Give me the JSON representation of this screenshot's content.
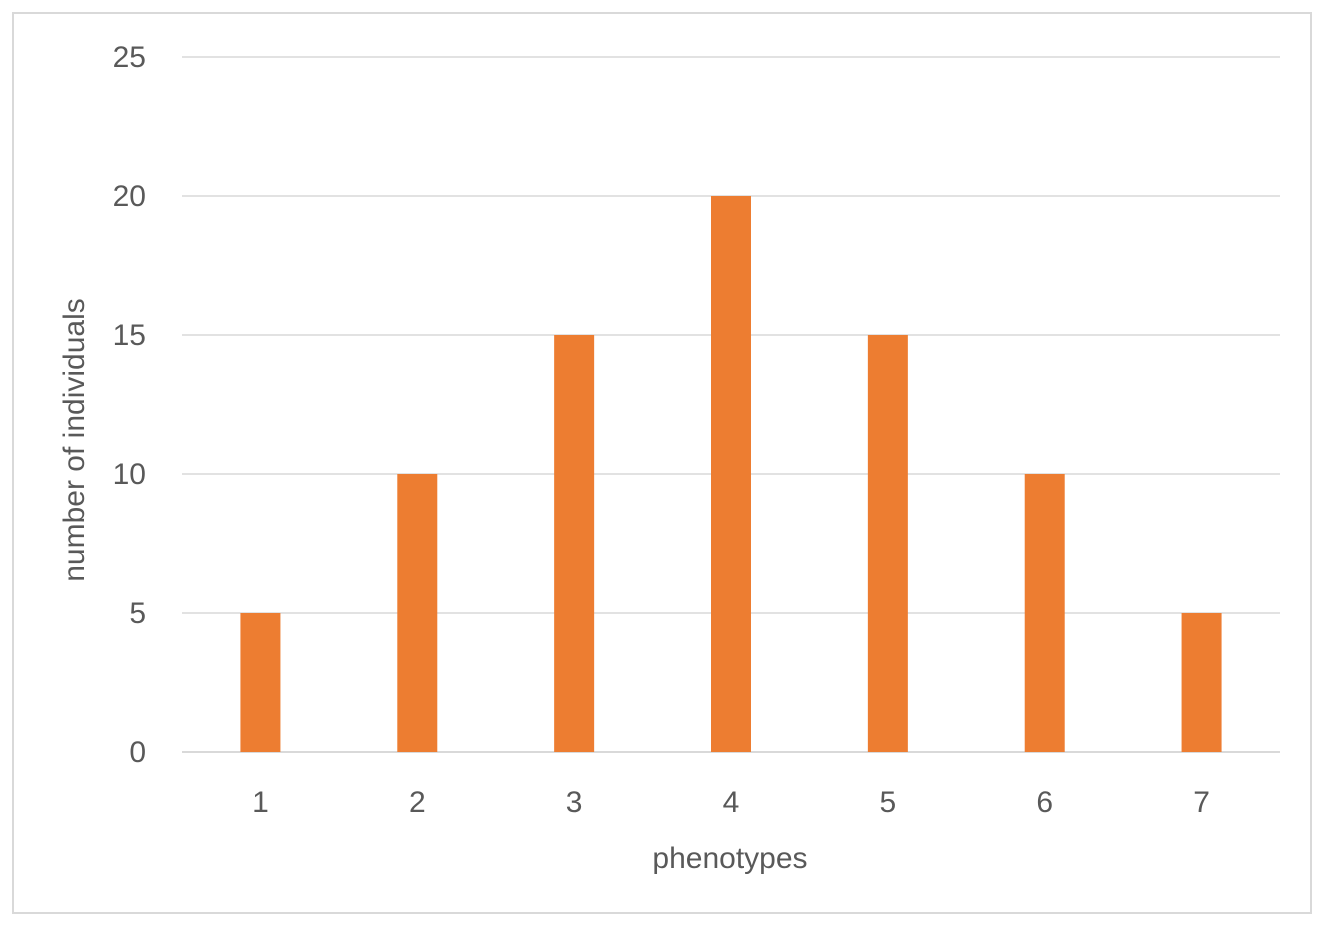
{
  "chart_data": {
    "type": "bar",
    "categories": [
      "1",
      "2",
      "3",
      "4",
      "5",
      "6",
      "7"
    ],
    "values": [
      5,
      10,
      15,
      20,
      15,
      10,
      5
    ],
    "title": "",
    "xlabel": "phenotypes",
    "ylabel": "number of individuals",
    "ylim": [
      0,
      25
    ],
    "yticks": [
      "0",
      "5",
      "10",
      "15",
      "20",
      "25"
    ],
    "grid": true,
    "legend": "none",
    "bar_color": "#ed7d31",
    "gridline_color": "#d9d9d9",
    "text_color": "#595959"
  }
}
